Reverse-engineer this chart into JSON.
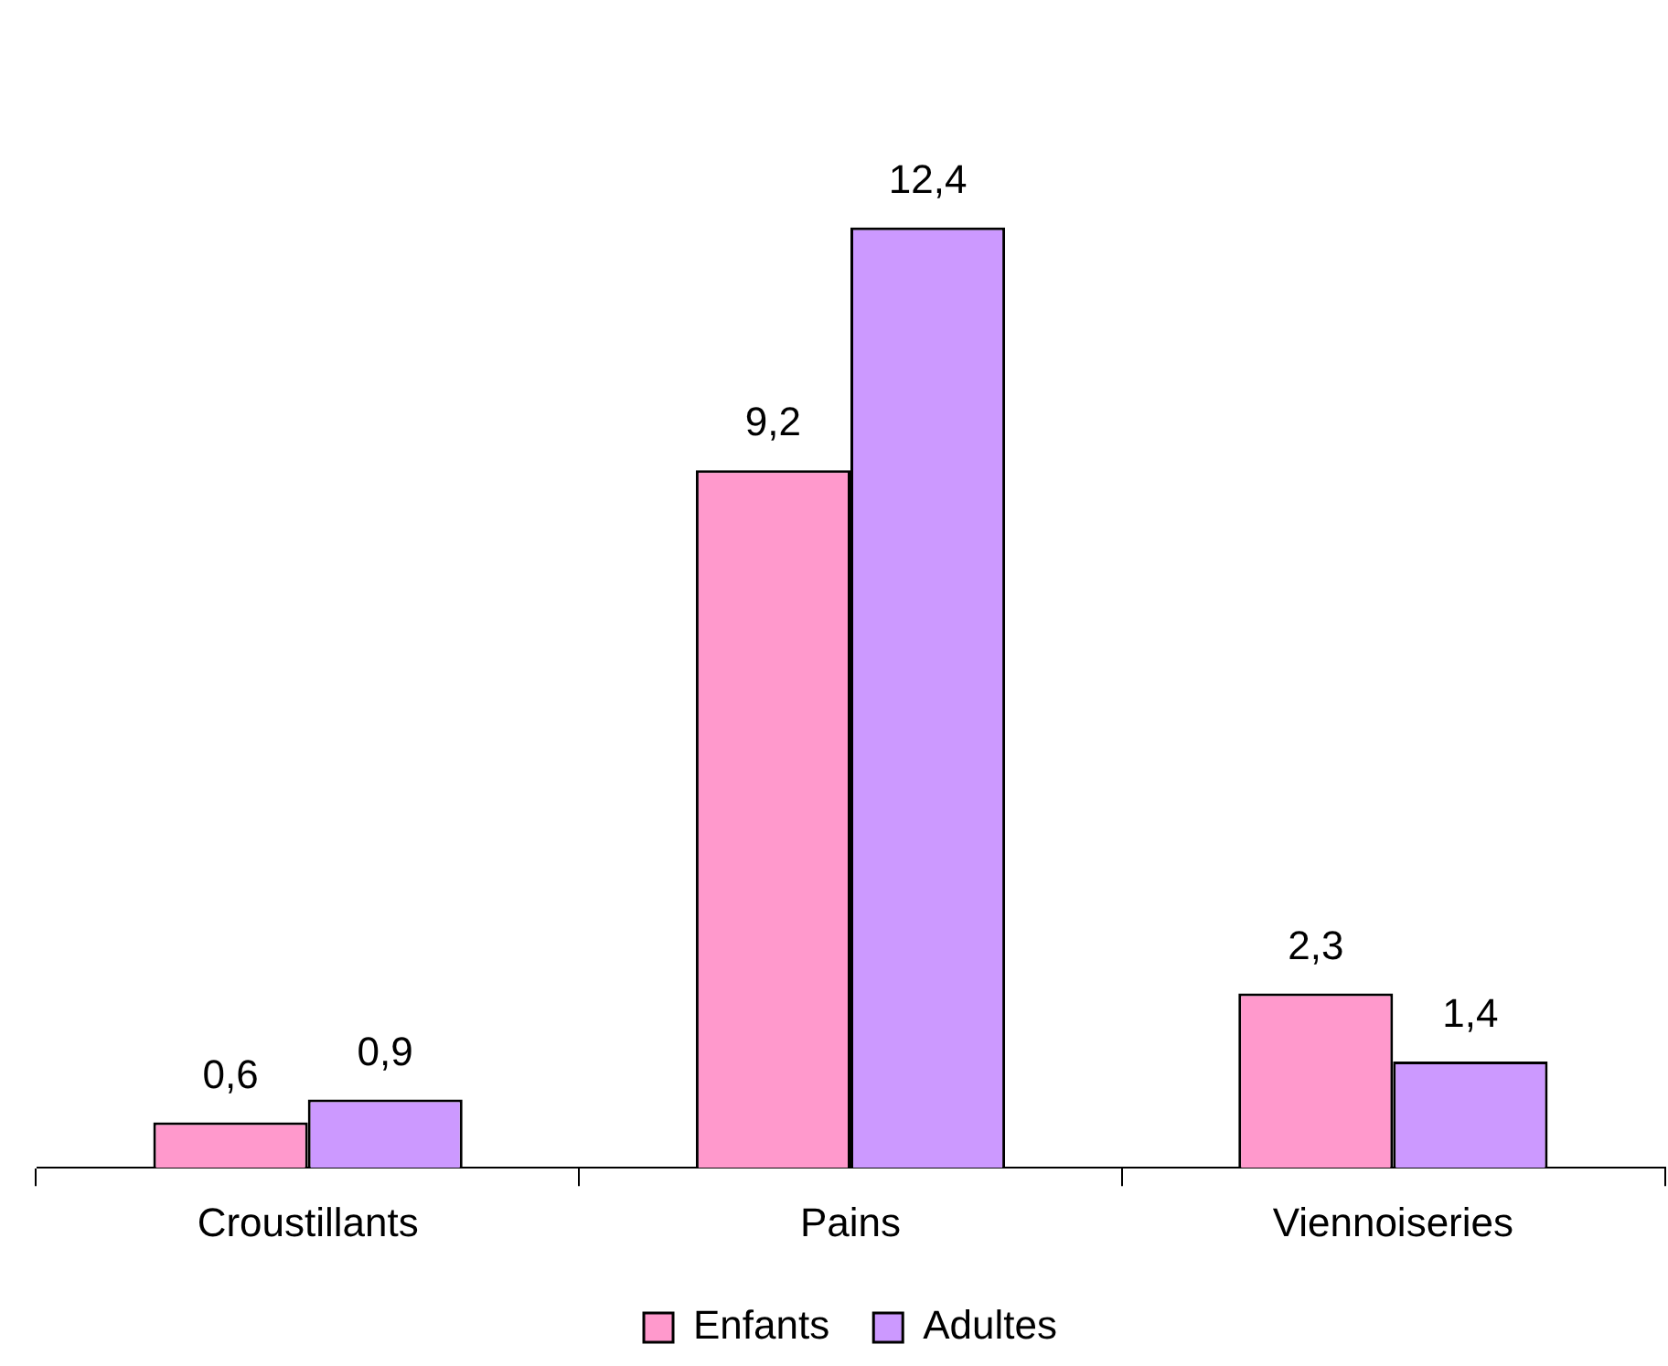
{
  "chart_data": {
    "type": "bar",
    "categories": [
      "Croustillants",
      "Pains",
      "Viennoiseries"
    ],
    "series": [
      {
        "name": "Enfants",
        "color": "#ff99cc",
        "values": [
          0.6,
          9.2,
          2.3
        ],
        "value_labels": [
          "0,6",
          "9,2",
          "2,3"
        ]
      },
      {
        "name": "Adultes",
        "color": "#cc99ff",
        "values": [
          0.9,
          12.4,
          1.4
        ],
        "value_labels": [
          "0,9",
          "12,4",
          "1,4"
        ]
      }
    ],
    "legend": "bottom",
    "grid": false,
    "tick_labels": "x"
  }
}
